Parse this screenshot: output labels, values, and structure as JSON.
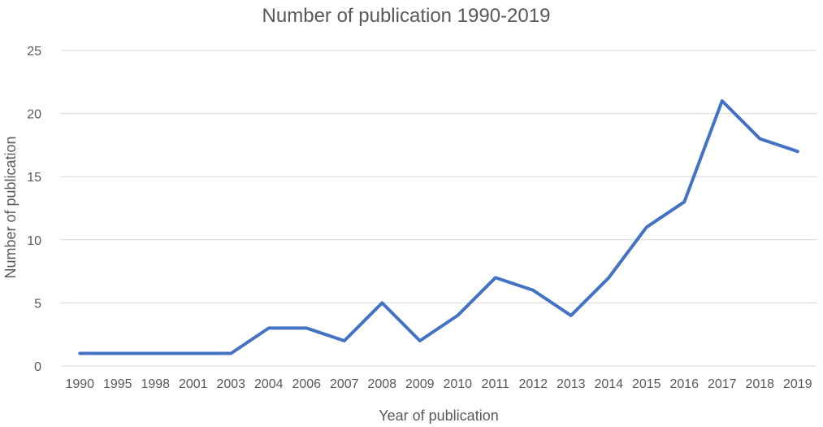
{
  "chart_data": {
    "type": "line",
    "title": "Number of publication 1990-2019",
    "xlabel": "Year of publication",
    "ylabel": "Number of publication",
    "categories": [
      "1990",
      "1995",
      "1998",
      "2001",
      "2003",
      "2004",
      "2006",
      "2007",
      "2008",
      "2009",
      "2010",
      "2011",
      "2012",
      "2013",
      "2014",
      "2015",
      "2016",
      "2017",
      "2018",
      "2019"
    ],
    "series": [
      {
        "values": [
          1,
          1,
          1,
          1,
          1,
          3,
          3,
          2,
          5,
          2,
          4,
          7,
          6,
          4,
          7,
          11,
          13,
          21,
          18,
          17
        ]
      }
    ],
    "ylim": [
      0,
      25
    ],
    "yticks": [
      0,
      5,
      10,
      15,
      20,
      25
    ],
    "grid": true,
    "legend": "none",
    "color": "#4472c4"
  }
}
